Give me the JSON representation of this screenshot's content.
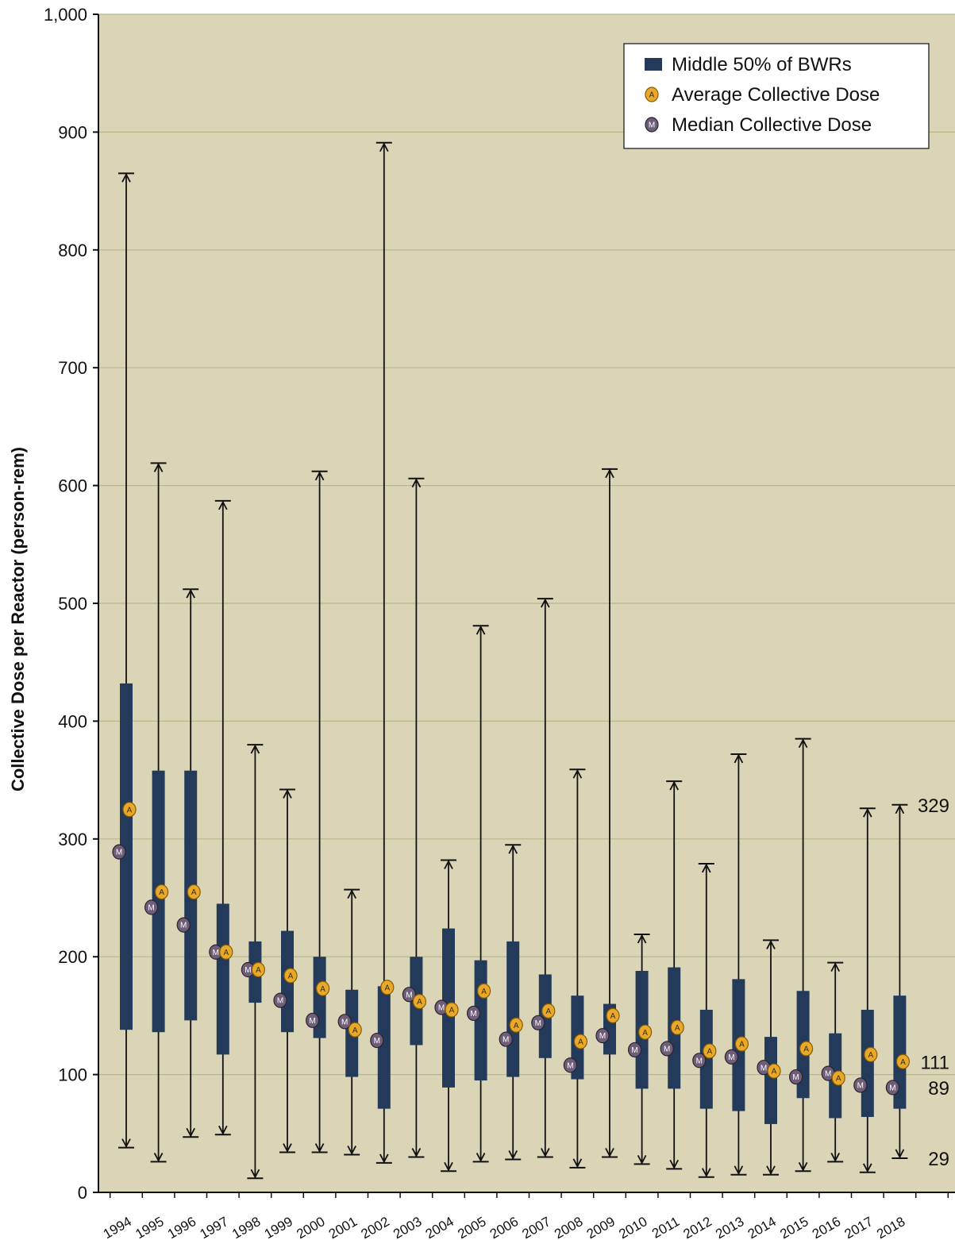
{
  "chart_data": {
    "type": "boxplot",
    "title": "",
    "xlabel": "",
    "ylabel": "Collective Dose per Reactor (person-rem)",
    "ylim": [
      0,
      1000
    ],
    "yticks": [
      0,
      100,
      200,
      300,
      400,
      500,
      600,
      700,
      800,
      900,
      1000
    ],
    "ytick_labels": [
      "0",
      "100",
      "200",
      "300",
      "400",
      "500",
      "600",
      "700",
      "800",
      "900",
      "1,000"
    ],
    "grid": true,
    "legend_position": "top-right",
    "categories": [
      "1994",
      "1995",
      "1996",
      "1997",
      "1998",
      "1999",
      "2000",
      "2001",
      "2002",
      "2003",
      "2004",
      "2005",
      "2006",
      "2007",
      "2008",
      "2009",
      "2010",
      "2011",
      "2012",
      "2013",
      "2014",
      "2015",
      "2016",
      "2017",
      "2018"
    ],
    "series": [
      {
        "name": "Middle 50% of BWRs",
        "key": "box",
        "q1": [
          138,
          136,
          146,
          117,
          161,
          136,
          131,
          98,
          71,
          125,
          89,
          95,
          98,
          114,
          96,
          117,
          88,
          88,
          71,
          69,
          58,
          80,
          63,
          64,
          71
        ],
        "q3": [
          432,
          358,
          358,
          245,
          213,
          222,
          200,
          172,
          175,
          200,
          224,
          197,
          213,
          185,
          167,
          160,
          188,
          191,
          155,
          181,
          132,
          171,
          135,
          155,
          167
        ]
      },
      {
        "name": "Average Collective Dose",
        "key": "average",
        "values": [
          325,
          255,
          255,
          204,
          189,
          184,
          173,
          138,
          174,
          162,
          155,
          171,
          142,
          154,
          128,
          150,
          136,
          140,
          120,
          126,
          103,
          122,
          97,
          117,
          111
        ]
      },
      {
        "name": "Median Collective Dose",
        "key": "median",
        "values": [
          289,
          242,
          227,
          204,
          189,
          163,
          146,
          145,
          129,
          168,
          157,
          152,
          130,
          144,
          108,
          133,
          121,
          122,
          112,
          115,
          106,
          98,
          101,
          91,
          89
        ]
      }
    ],
    "whisker_max": [
      865,
      619,
      512,
      587,
      380,
      342,
      612,
      257,
      891,
      606,
      282,
      481,
      295,
      504,
      359,
      614,
      219,
      349,
      279,
      372,
      214,
      385,
      195,
      326,
      329
    ],
    "whisker_min": [
      38,
      26,
      47,
      49,
      12,
      34,
      34,
      32,
      25,
      30,
      18,
      26,
      28,
      30,
      21,
      30,
      24,
      20,
      13,
      15,
      15,
      18,
      26,
      17,
      29
    ],
    "annotations": [
      {
        "text": "329",
        "value": 329
      },
      {
        "text": "111",
        "value": 111
      },
      {
        "text": "89",
        "value": 89
      },
      {
        "text": "29",
        "value": 29
      }
    ],
    "colors": {
      "background": "#d9d5b6",
      "grid": "#b8b78a",
      "box": "#243a5a",
      "average": "#e8a92a",
      "average_stroke": "#8a5a00",
      "median": "#6e5e78",
      "median_stroke": "#2b2230",
      "whisker": "#111111"
    },
    "legend": {
      "items": [
        {
          "label": "Middle 50% of BWRs",
          "symbol": "box"
        },
        {
          "label": "Average Collective Dose",
          "symbol": "average",
          "letter": "A"
        },
        {
          "label": "Median Collective Dose",
          "symbol": "median",
          "letter": "M"
        }
      ]
    }
  }
}
